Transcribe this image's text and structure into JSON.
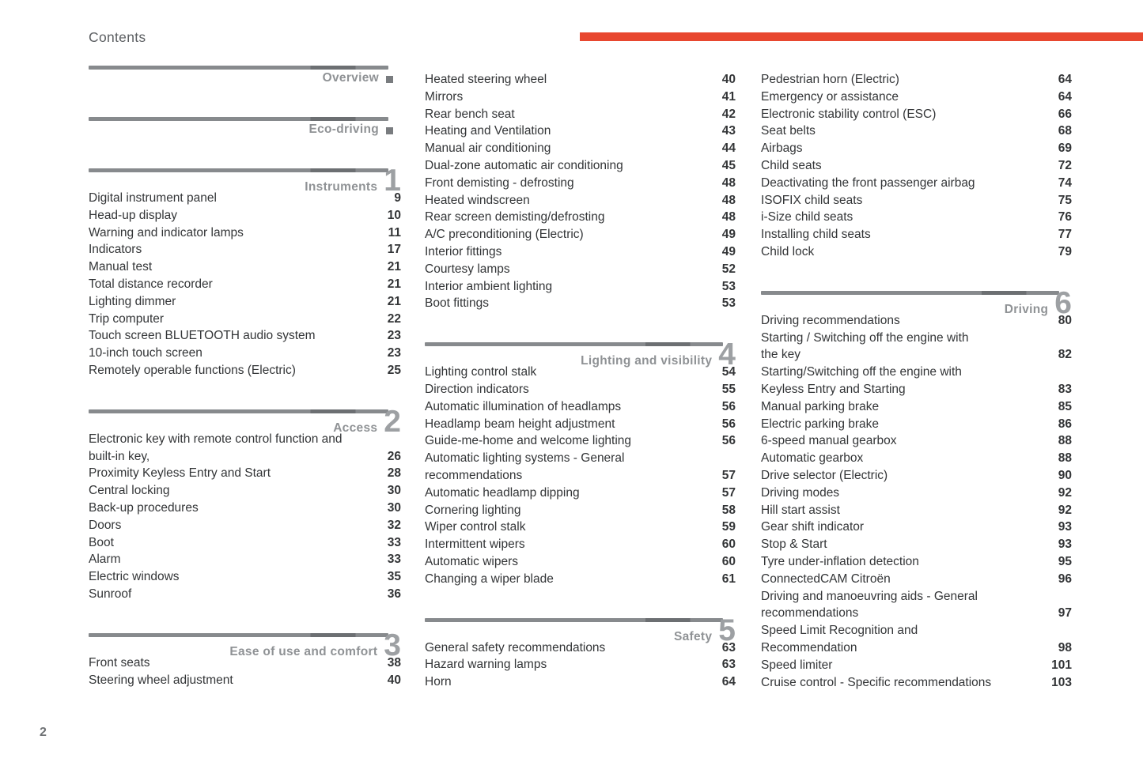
{
  "page": {
    "title": "Contents",
    "page_number": "2",
    "colors": {
      "accent": "#e8472f",
      "divider": "#878a8d",
      "divider_dark": "#6c6f72",
      "section_label": "#8f9295",
      "section_number": "#9da0a3",
      "entry_text": "#333537"
    }
  },
  "columns": [
    {
      "id": "col-1",
      "blocks": [
        {
          "type": "section",
          "label": "Overview",
          "marker": "square"
        },
        {
          "type": "section",
          "label": "Eco-driving",
          "marker": "square"
        },
        {
          "type": "section",
          "label": "Instruments",
          "number": "1"
        },
        {
          "type": "entries",
          "rows": [
            {
              "t": "Digital instrument panel",
              "p": "9"
            },
            {
              "t": "Head-up display",
              "p": "10"
            },
            {
              "t": "Warning and indicator lamps",
              "p": "11"
            },
            {
              "t": "Indicators",
              "p": "17"
            },
            {
              "t": "Manual test",
              "p": "21"
            },
            {
              "t": "Total distance recorder",
              "p": "21"
            },
            {
              "t": "Lighting dimmer",
              "p": "21"
            },
            {
              "t": "Trip computer",
              "p": "22"
            },
            {
              "t": "Touch screen BLUETOOTH audio system",
              "p": "23"
            },
            {
              "t": "10-inch touch screen",
              "p": "23"
            },
            {
              "t": "Remotely operable functions (Electric)",
              "p": "25"
            }
          ]
        },
        {
          "type": "section",
          "label": "Access",
          "number": "2"
        },
        {
          "type": "entries",
          "rows": [
            {
              "t": "Electronic key with remote control function and",
              "p": ""
            },
            {
              "t": "built-in key,",
              "p": "26"
            },
            {
              "t": "Proximity Keyless Entry and Start",
              "p": "28"
            },
            {
              "t": "Central locking",
              "p": "30"
            },
            {
              "t": "Back-up procedures",
              "p": "30"
            },
            {
              "t": "Doors",
              "p": "32"
            },
            {
              "t": "Boot",
              "p": "33"
            },
            {
              "t": "Alarm",
              "p": "33"
            },
            {
              "t": "Electric windows",
              "p": "35"
            },
            {
              "t": "Sunroof",
              "p": "36"
            }
          ]
        },
        {
          "type": "section",
          "label": "Ease of use and comfort",
          "number": "3"
        },
        {
          "type": "entries",
          "rows": [
            {
              "t": "Front seats",
              "p": "38"
            },
            {
              "t": "Steering wheel adjustment",
              "p": "40"
            }
          ]
        }
      ]
    },
    {
      "id": "col-2",
      "blocks": [
        {
          "type": "entries",
          "rows": [
            {
              "t": "Heated steering wheel",
              "p": "40"
            },
            {
              "t": "Mirrors",
              "p": "41"
            },
            {
              "t": "Rear bench seat",
              "p": "42"
            },
            {
              "t": "Heating and Ventilation",
              "p": "43"
            },
            {
              "t": "Manual air conditioning",
              "p": "44"
            },
            {
              "t": "Dual-zone automatic air conditioning",
              "p": "45"
            },
            {
              "t": "Front demisting - defrosting",
              "p": "48"
            },
            {
              "t": "Heated windscreen",
              "p": "48"
            },
            {
              "t": "Rear screen demisting/defrosting",
              "p": "48"
            },
            {
              "t": "A/C preconditioning (Electric)",
              "p": "49"
            },
            {
              "t": "Interior fittings",
              "p": "49"
            },
            {
              "t": "Courtesy lamps",
              "p": "52"
            },
            {
              "t": "Interior ambient lighting",
              "p": "53"
            },
            {
              "t": "Boot fittings",
              "p": "53"
            }
          ]
        },
        {
          "type": "section",
          "label": "Lighting and visibility",
          "number": "4"
        },
        {
          "type": "entries",
          "rows": [
            {
              "t": "Lighting control stalk",
              "p": "54"
            },
            {
              "t": "Direction indicators",
              "p": "55"
            },
            {
              "t": "Automatic illumination of headlamps",
              "p": "56"
            },
            {
              "t": "Headlamp beam height adjustment",
              "p": "56"
            },
            {
              "t": "Guide-me-home and welcome lighting",
              "p": "56"
            },
            {
              "t": "Automatic lighting systems - General",
              "p": ""
            },
            {
              "t": "recommendations",
              "p": "57"
            },
            {
              "t": "Automatic headlamp dipping",
              "p": "57"
            },
            {
              "t": "Cornering lighting",
              "p": "58"
            },
            {
              "t": "Wiper control stalk",
              "p": "59"
            },
            {
              "t": "Intermittent wipers",
              "p": "60"
            },
            {
              "t": "Automatic wipers",
              "p": "60"
            },
            {
              "t": "Changing a wiper blade",
              "p": "61"
            }
          ]
        },
        {
          "type": "section",
          "label": "Safety",
          "number": "5"
        },
        {
          "type": "entries",
          "rows": [
            {
              "t": "General safety recommendations",
              "p": "63"
            },
            {
              "t": "Hazard warning lamps",
              "p": "63"
            },
            {
              "t": "Horn",
              "p": "64"
            }
          ]
        }
      ]
    },
    {
      "id": "col-3",
      "blocks": [
        {
          "type": "entries",
          "rows": [
            {
              "t": "Pedestrian horn (Electric)",
              "p": "64"
            },
            {
              "t": "Emergency or assistance",
              "p": "64"
            },
            {
              "t": "Electronic stability control (ESC)",
              "p": "66"
            },
            {
              "t": "Seat belts",
              "p": "68"
            },
            {
              "t": "Airbags",
              "p": "69"
            },
            {
              "t": "Child seats",
              "p": "72"
            },
            {
              "t": "Deactivating the front passenger airbag",
              "p": "74"
            },
            {
              "t": "ISOFIX child seats",
              "p": "75"
            },
            {
              "t": "i-Size child seats",
              "p": "76"
            },
            {
              "t": "Installing child seats",
              "p": "77"
            },
            {
              "t": "Child lock",
              "p": "79"
            }
          ]
        },
        {
          "type": "section",
          "label": "Driving",
          "number": "6"
        },
        {
          "type": "entries",
          "rows": [
            {
              "t": "Driving recommendations",
              "p": "80"
            },
            {
              "t": "Starting / Switching off the engine with",
              "p": ""
            },
            {
              "t": "the key",
              "p": "82"
            },
            {
              "t": "Starting/Switching off the engine with",
              "p": ""
            },
            {
              "t": "Keyless Entry and Starting",
              "p": "83"
            },
            {
              "t": "Manual parking brake",
              "p": "85"
            },
            {
              "t": "Electric parking brake",
              "p": "86"
            },
            {
              "t": "6-speed manual gearbox",
              "p": "88"
            },
            {
              "t": "Automatic gearbox",
              "p": "88"
            },
            {
              "t": "Drive selector (Electric)",
              "p": "90"
            },
            {
              "t": "Driving modes",
              "p": "92"
            },
            {
              "t": "Hill start assist",
              "p": "92"
            },
            {
              "t": "Gear shift indicator",
              "p": "93"
            },
            {
              "t": "Stop & Start",
              "p": "93"
            },
            {
              "t": "Tyre under-inflation detection",
              "p": "95"
            },
            {
              "t": "ConnectedCAM Citroën",
              "p": "96"
            },
            {
              "t": "Driving and manoeuvring aids - General",
              "p": ""
            },
            {
              "t": "recommendations",
              "p": "97"
            },
            {
              "t": "Speed Limit Recognition and",
              "p": ""
            },
            {
              "t": "Recommendation",
              "p": "98"
            },
            {
              "t": "Speed limiter",
              "p": "101"
            },
            {
              "t": "Cruise control - Specific recommendations",
              "p": "103"
            }
          ]
        }
      ]
    }
  ]
}
